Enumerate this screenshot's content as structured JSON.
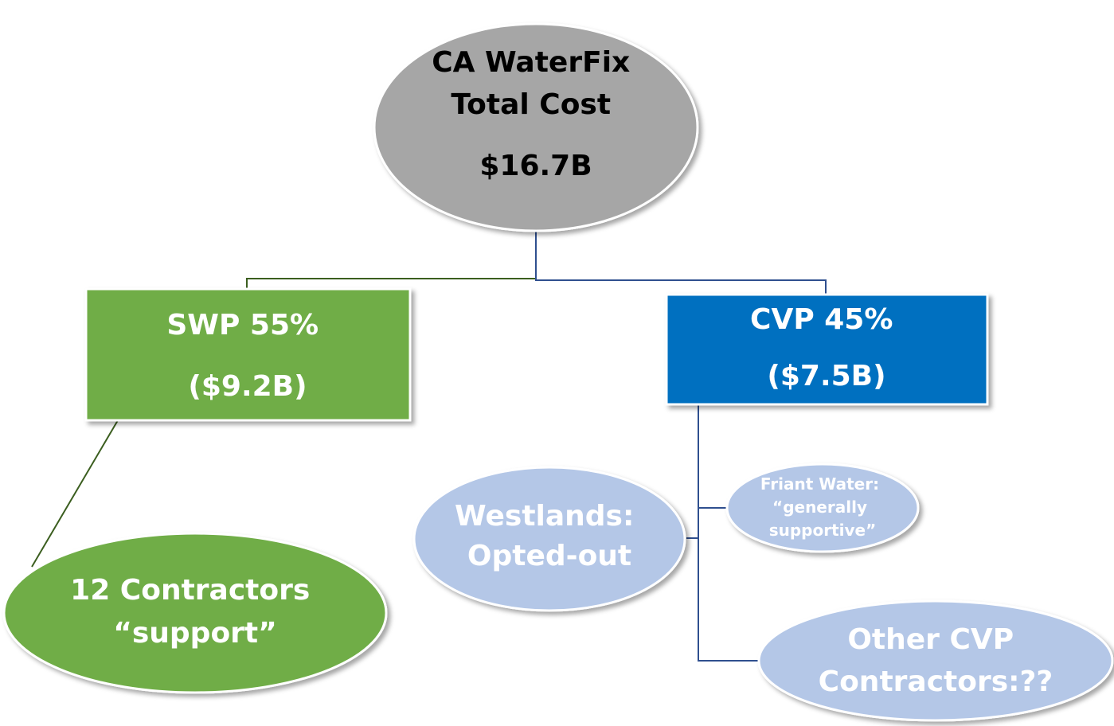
{
  "nodes": [
    {
      "id": "root",
      "lines": [
        "CA WaterFix",
        "Total Cost",
        "$16.7B"
      ]
    },
    {
      "id": "swp",
      "lines": [
        "SWP 55%",
        "($9.2B)"
      ]
    },
    {
      "id": "cvp",
      "lines": [
        "CVP 45%",
        "($7.5B)"
      ]
    },
    {
      "id": "swp-contractors",
      "lines": [
        "12 Contractors",
        "“support”"
      ]
    },
    {
      "id": "westlands",
      "lines": [
        "Westlands:",
        "Opted-out"
      ]
    },
    {
      "id": "friant",
      "lines": [
        "Friant Water:",
        "“generally",
        "supportive”"
      ]
    },
    {
      "id": "other-cvp",
      "lines": [
        "Other CVP",
        "Contractors:??"
      ]
    }
  ]
}
